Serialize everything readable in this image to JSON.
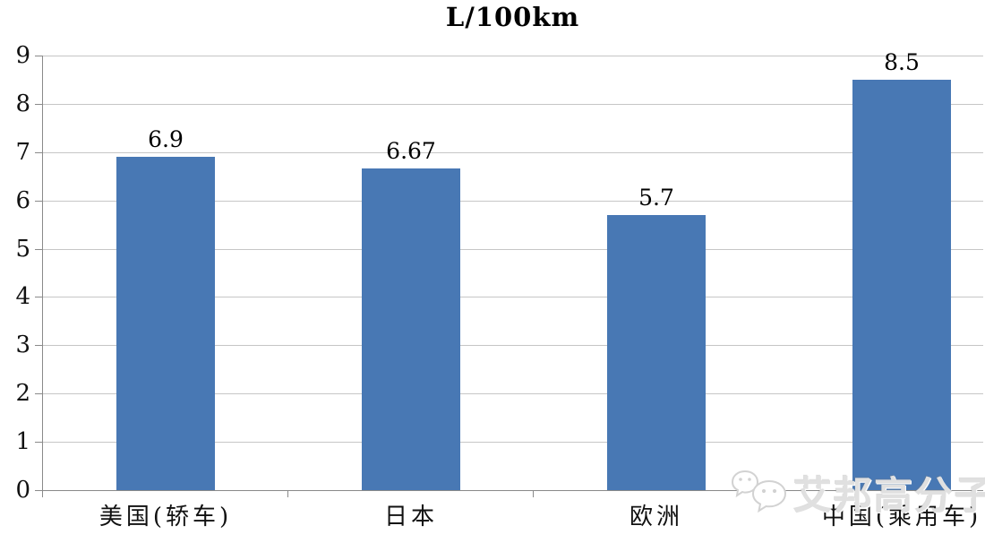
{
  "title": "L/100km",
  "watermark": {
    "icon": "wechat-icon",
    "text": "艾邦高分子"
  },
  "chart_data": {
    "type": "bar",
    "title": "L/100km",
    "categories": [
      "美国(轿车)",
      "日本",
      "欧洲",
      "中国(乘用车)"
    ],
    "values": [
      6.9,
      6.67,
      5.7,
      8.5
    ],
    "value_labels": [
      "6.9",
      "6.67",
      "5.7",
      "8.5"
    ],
    "xlabel": "",
    "ylabel": "",
    "ylim": [
      0,
      9
    ],
    "yticks": [
      0,
      1,
      2,
      3,
      4,
      5,
      6,
      7,
      8,
      9
    ],
    "grid": true,
    "legend": false,
    "bar_color": "#4878b4",
    "gridline_color": "#c6c6c6",
    "axis_color": "#8a8a8a"
  }
}
